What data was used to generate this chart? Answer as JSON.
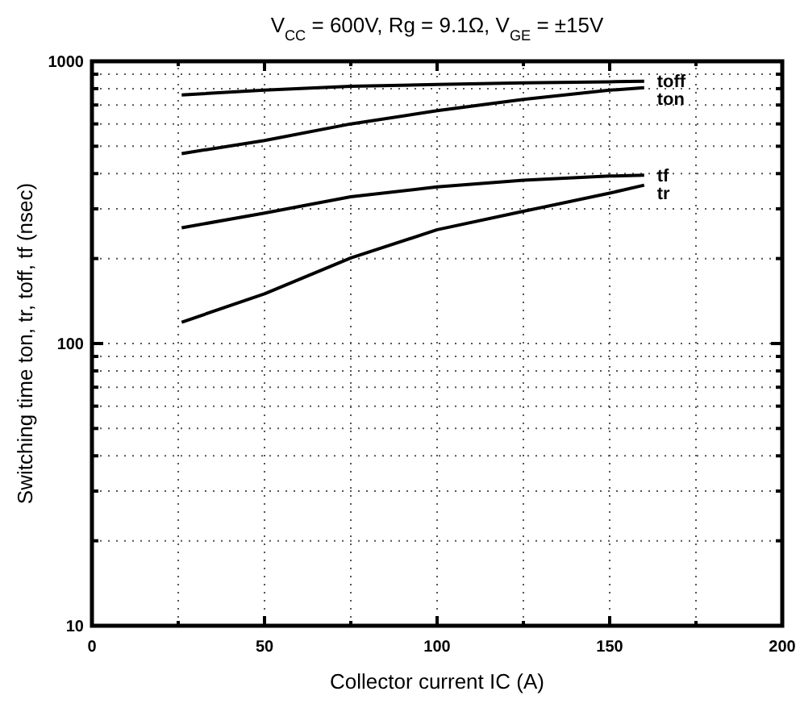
{
  "chart_data": {
    "type": "line",
    "title": "V$_{CC}$ = 600V, Rg = 9.1Ω, V$_{GE}$ = ±15V",
    "xlabel": "Collector current    IC (A)",
    "ylabel": "Switching time ton, tr, toff, tf (nsec)",
    "x": [
      26,
      50,
      75,
      100,
      125,
      150,
      160
    ],
    "series": [
      {
        "name": "toff",
        "color": "#000000",
        "values": [
          760,
          790,
          815,
          828,
          838,
          846,
          850
        ]
      },
      {
        "name": "ton",
        "color": "#000000",
        "values": [
          471,
          524,
          600,
          668,
          733,
          790,
          806
        ]
      },
      {
        "name": "tf",
        "color": "#000000",
        "values": [
          257,
          290,
          331,
          359,
          379,
          392,
          395
        ]
      },
      {
        "name": "tr",
        "color": "#000000",
        "values": [
          119,
          150,
          201,
          253,
          294,
          341,
          364
        ]
      }
    ],
    "xlim": [
      0,
      200
    ],
    "ylim": [
      10,
      1000
    ],
    "xticks": [
      0,
      {
        "value": 25,
        "label": null
      },
      50,
      {
        "value": 75,
        "label": null
      },
      100,
      {
        "value": 125,
        "label": null
      },
      150,
      {
        "value": 175,
        "label": null
      },
      200
    ],
    "yticks": [
      10,
      {
        "value": 20,
        "label": null
      },
      {
        "value": 30,
        "label": null
      },
      {
        "value": 40,
        "label": null
      },
      {
        "value": 50,
        "label": null
      },
      {
        "value": 60,
        "label": null
      },
      {
        "value": 70,
        "label": null
      },
      {
        "value": 80,
        "label": null
      },
      {
        "value": 90,
        "label": null
      },
      100,
      {
        "value": 200,
        "label": null
      },
      {
        "value": 300,
        "label": null
      },
      {
        "value": 400,
        "label": null
      },
      {
        "value": 500,
        "label": null
      },
      {
        "value": 600,
        "label": null
      },
      {
        "value": 700,
        "label": null
      },
      {
        "value": 800,
        "label": null
      },
      {
        "value": 900,
        "label": null
      },
      1000
    ],
    "log": true,
    "grid": true,
    "marker": "none",
    "line_style": "solid"
  }
}
